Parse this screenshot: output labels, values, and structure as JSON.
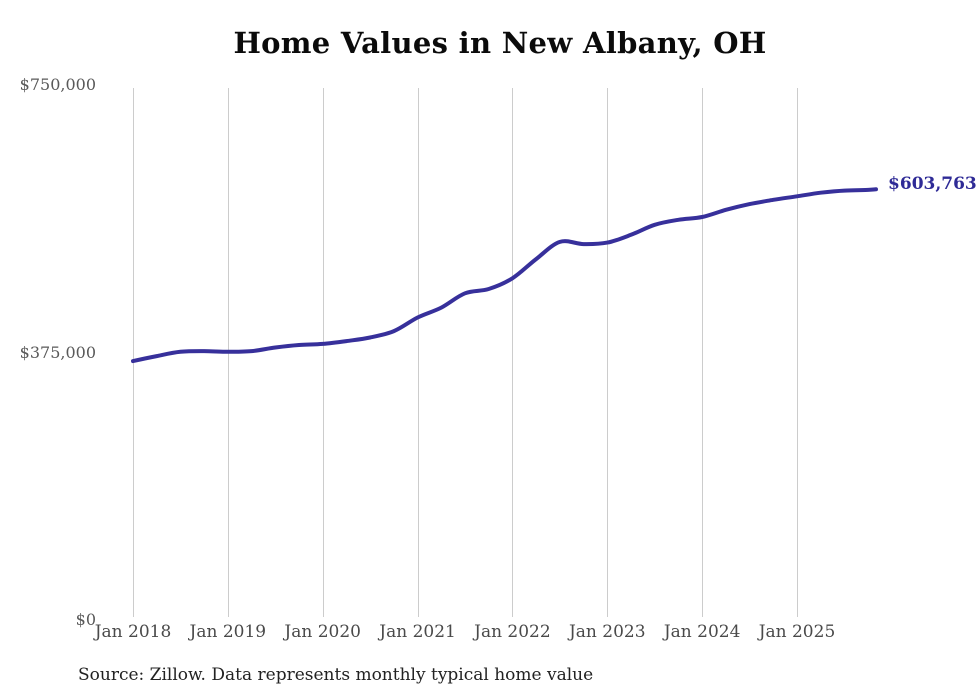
{
  "chart_data": {
    "type": "line",
    "title": "Home Values in New Albany, OH",
    "source_note": "Source: Zillow. Data represents monthly typical home value",
    "end_label": "$603,763",
    "final_value": 603763,
    "ylim": [
      0,
      750000
    ],
    "grid": "vertical-only",
    "legend": "none",
    "y_ticks": [
      {
        "value": 750000,
        "label": "$750,000"
      },
      {
        "value": 375000,
        "label": "$375,000"
      },
      {
        "value": 0,
        "label": "$0"
      }
    ],
    "x_ticks": [
      {
        "month": "2018-01",
        "label": "Jan 2018"
      },
      {
        "month": "2019-01",
        "label": "Jan 2019"
      },
      {
        "month": "2020-01",
        "label": "Jan 2020"
      },
      {
        "month": "2021-01",
        "label": "Jan 2021"
      },
      {
        "month": "2022-01",
        "label": "Jan 2022"
      },
      {
        "month": "2023-01",
        "label": "Jan 2023"
      },
      {
        "month": "2024-01",
        "label": "Jan 2024"
      },
      {
        "month": "2025-01",
        "label": "Jan 2025"
      }
    ],
    "series": [
      {
        "name": "Monthly typical home value",
        "points": [
          {
            "month": "2018-01",
            "value": 363000
          },
          {
            "month": "2018-04",
            "value": 370000
          },
          {
            "month": "2018-07",
            "value": 376000
          },
          {
            "month": "2018-10",
            "value": 377000
          },
          {
            "month": "2019-01",
            "value": 376000
          },
          {
            "month": "2019-04",
            "value": 377000
          },
          {
            "month": "2019-07",
            "value": 382000
          },
          {
            "month": "2019-10",
            "value": 385500
          },
          {
            "month": "2020-01",
            "value": 387000
          },
          {
            "month": "2020-04",
            "value": 391000
          },
          {
            "month": "2020-07",
            "value": 396000
          },
          {
            "month": "2020-10",
            "value": 405000
          },
          {
            "month": "2021-01",
            "value": 424000
          },
          {
            "month": "2021-04",
            "value": 438000
          },
          {
            "month": "2021-07",
            "value": 458000
          },
          {
            "month": "2021-10",
            "value": 464000
          },
          {
            "month": "2022-01",
            "value": 479000
          },
          {
            "month": "2022-04",
            "value": 506000
          },
          {
            "month": "2022-07",
            "value": 530000
          },
          {
            "month": "2022-10",
            "value": 527000
          },
          {
            "month": "2023-01",
            "value": 529000
          },
          {
            "month": "2023-04",
            "value": 540000
          },
          {
            "month": "2023-07",
            "value": 554000
          },
          {
            "month": "2023-10",
            "value": 561000
          },
          {
            "month": "2024-01",
            "value": 565000
          },
          {
            "month": "2024-04",
            "value": 575000
          },
          {
            "month": "2024-07",
            "value": 583000
          },
          {
            "month": "2024-10",
            "value": 589000
          },
          {
            "month": "2025-01",
            "value": 594000
          },
          {
            "month": "2025-04",
            "value": 599000
          },
          {
            "month": "2025-07",
            "value": 602000
          },
          {
            "month": "2025-10",
            "value": 603000
          },
          {
            "month": "2025-11",
            "value": 603763
          }
        ]
      }
    ],
    "colors": {
      "line": "#37309b",
      "end_label": "#2e2a96",
      "gridline": "#cccccc",
      "y_axis_label": "#595959",
      "x_axis_label": "#4a4a4a",
      "title": "#0b0b0b",
      "source": "#222222"
    }
  }
}
